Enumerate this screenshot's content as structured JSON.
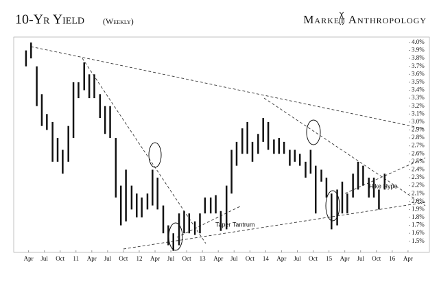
{
  "chart_data": {
    "type": "range-bar",
    "title": "10-Yr Yield",
    "subtitle": "(Weekly)",
    "brand": "Market Anthropology",
    "annotations": [
      "Taper Tantrum",
      "Hike Hype"
    ],
    "color": "#111111",
    "x": [
      2010.21,
      2010.29,
      2010.38,
      2010.46,
      2010.54,
      2010.63,
      2010.71,
      2010.79,
      2010.88,
      2010.96,
      2011.04,
      2011.13,
      2011.21,
      2011.29,
      2011.38,
      2011.46,
      2011.54,
      2011.63,
      2011.71,
      2011.79,
      2011.88,
      2011.96,
      2012.04,
      2012.13,
      2012.21,
      2012.29,
      2012.38,
      2012.46,
      2012.54,
      2012.63,
      2012.71,
      2012.79,
      2012.88,
      2012.96,
      2013.04,
      2013.13,
      2013.21,
      2013.29,
      2013.38,
      2013.46,
      2013.54,
      2013.63,
      2013.71,
      2013.79,
      2013.88,
      2013.96,
      2014.04,
      2014.13,
      2014.21,
      2014.29,
      2014.38,
      2014.46,
      2014.54,
      2014.63,
      2014.71,
      2014.79,
      2014.88,
      2014.96,
      2015.04,
      2015.13,
      2015.21,
      2015.29,
      2015.38,
      2015.46,
      2015.54,
      2015.63,
      2015.71,
      2015.79,
      2015.88
    ],
    "high": [
      3.9,
      4.0,
      3.7,
      3.35,
      3.1,
      3.0,
      2.8,
      2.65,
      2.95,
      3.5,
      3.5,
      3.75,
      3.6,
      3.6,
      3.35,
      3.2,
      3.2,
      2.8,
      2.2,
      2.4,
      2.2,
      2.1,
      2.05,
      2.1,
      2.4,
      2.3,
      1.95,
      1.7,
      1.6,
      1.85,
      1.88,
      1.85,
      1.75,
      1.85,
      2.05,
      2.05,
      2.08,
      1.88,
      2.2,
      2.65,
      2.75,
      2.92,
      3.0,
      2.75,
      2.85,
      3.05,
      3.0,
      2.78,
      2.8,
      2.75,
      2.65,
      2.65,
      2.6,
      2.5,
      2.65,
      2.45,
      2.4,
      2.3,
      2.1,
      2.15,
      2.25,
      2.1,
      2.35,
      2.5,
      2.45,
      2.3,
      2.3,
      2.15,
      2.35
    ],
    "low": [
      3.7,
      3.8,
      3.2,
      2.95,
      2.9,
      2.5,
      2.5,
      2.35,
      2.5,
      2.8,
      3.3,
      3.4,
      3.3,
      3.3,
      3.05,
      2.85,
      2.8,
      2.05,
      1.7,
      1.75,
      1.9,
      1.8,
      1.8,
      1.9,
      1.95,
      1.9,
      1.6,
      1.45,
      1.38,
      1.45,
      1.6,
      1.6,
      1.58,
      1.6,
      1.85,
      1.85,
      1.85,
      1.63,
      1.65,
      2.1,
      2.45,
      2.6,
      2.6,
      2.5,
      2.6,
      2.75,
      2.65,
      2.6,
      2.6,
      2.6,
      2.45,
      2.5,
      2.45,
      2.3,
      2.35,
      1.85,
      2.25,
      2.05,
      1.65,
      1.7,
      1.85,
      1.85,
      2.05,
      2.15,
      2.2,
      2.05,
      2.05,
      1.9,
      2.15
    ],
    "xlim": [
      2010.07,
      2016.36
    ],
    "xticks": [
      {
        "value": 2010.25,
        "label": "Apr"
      },
      {
        "value": 2010.5,
        "label": "Jul"
      },
      {
        "value": 2010.75,
        "label": "Oct"
      },
      {
        "value": 2011,
        "label": "11"
      },
      {
        "value": 2011.25,
        "label": "Apr"
      },
      {
        "value": 2011.5,
        "label": "Jul"
      },
      {
        "value": 2011.75,
        "label": "Oct"
      },
      {
        "value": 2012,
        "label": "12"
      },
      {
        "value": 2012.25,
        "label": "Apr"
      },
      {
        "value": 2012.5,
        "label": "Jul"
      },
      {
        "value": 2012.75,
        "label": "Oct"
      },
      {
        "value": 2013,
        "label": "13"
      },
      {
        "value": 2013.25,
        "label": "Apr"
      },
      {
        "value": 2013.5,
        "label": "Jul"
      },
      {
        "value": 2013.75,
        "label": "Oct"
      },
      {
        "value": 2014,
        "label": "14"
      },
      {
        "value": 2014.25,
        "label": "Apr"
      },
      {
        "value": 2014.5,
        "label": "Jul"
      },
      {
        "value": 2014.75,
        "label": "Oct"
      },
      {
        "value": 2015,
        "label": "15"
      },
      {
        "value": 2015.25,
        "label": "Apr"
      },
      {
        "value": 2015.5,
        "label": "Jul"
      },
      {
        "value": 2015.75,
        "label": "Oct"
      },
      {
        "value": 2016,
        "label": "16"
      },
      {
        "value": 2016.25,
        "label": "Apr"
      }
    ],
    "ylim": [
      1.36,
      4.06
    ],
    "yticks": [
      {
        "value": 1.5,
        "label": "1.5%"
      },
      {
        "value": 1.6,
        "label": "1.6%"
      },
      {
        "value": 1.7,
        "label": "1.7%"
      },
      {
        "value": 1.8,
        "label": "1.8%"
      },
      {
        "value": 1.9,
        "label": "1.9%"
      },
      {
        "value": 2.0,
        "label": "2.0%"
      },
      {
        "value": 2.1,
        "label": "2.1%"
      },
      {
        "value": 2.2,
        "label": "2.2%"
      },
      {
        "value": 2.3,
        "label": "2.3%"
      },
      {
        "value": 2.4,
        "label": "2.4%"
      },
      {
        "value": 2.5,
        "label": "2.5%"
      },
      {
        "value": 2.6,
        "label": "2.6%"
      },
      {
        "value": 2.7,
        "label": "2.7%"
      },
      {
        "value": 2.8,
        "label": "2.8%"
      },
      {
        "value": 2.9,
        "label": "2.9%"
      },
      {
        "value": 3.0,
        "label": "3.0%"
      },
      {
        "value": 3.1,
        "label": "3.1%"
      },
      {
        "value": 3.2,
        "label": "3.2%"
      },
      {
        "value": 3.3,
        "label": "3.3%"
      },
      {
        "value": 3.4,
        "label": "3.4%"
      },
      {
        "value": 3.5,
        "label": "3.5%"
      },
      {
        "value": 3.6,
        "label": "3.6%"
      },
      {
        "value": 3.7,
        "label": "3.7%"
      },
      {
        "value": 3.8,
        "label": "3.8%"
      },
      {
        "value": 3.9,
        "label": "3.9%"
      },
      {
        "value": 4.0,
        "label": "4.0%"
      }
    ],
    "grid": false
  }
}
